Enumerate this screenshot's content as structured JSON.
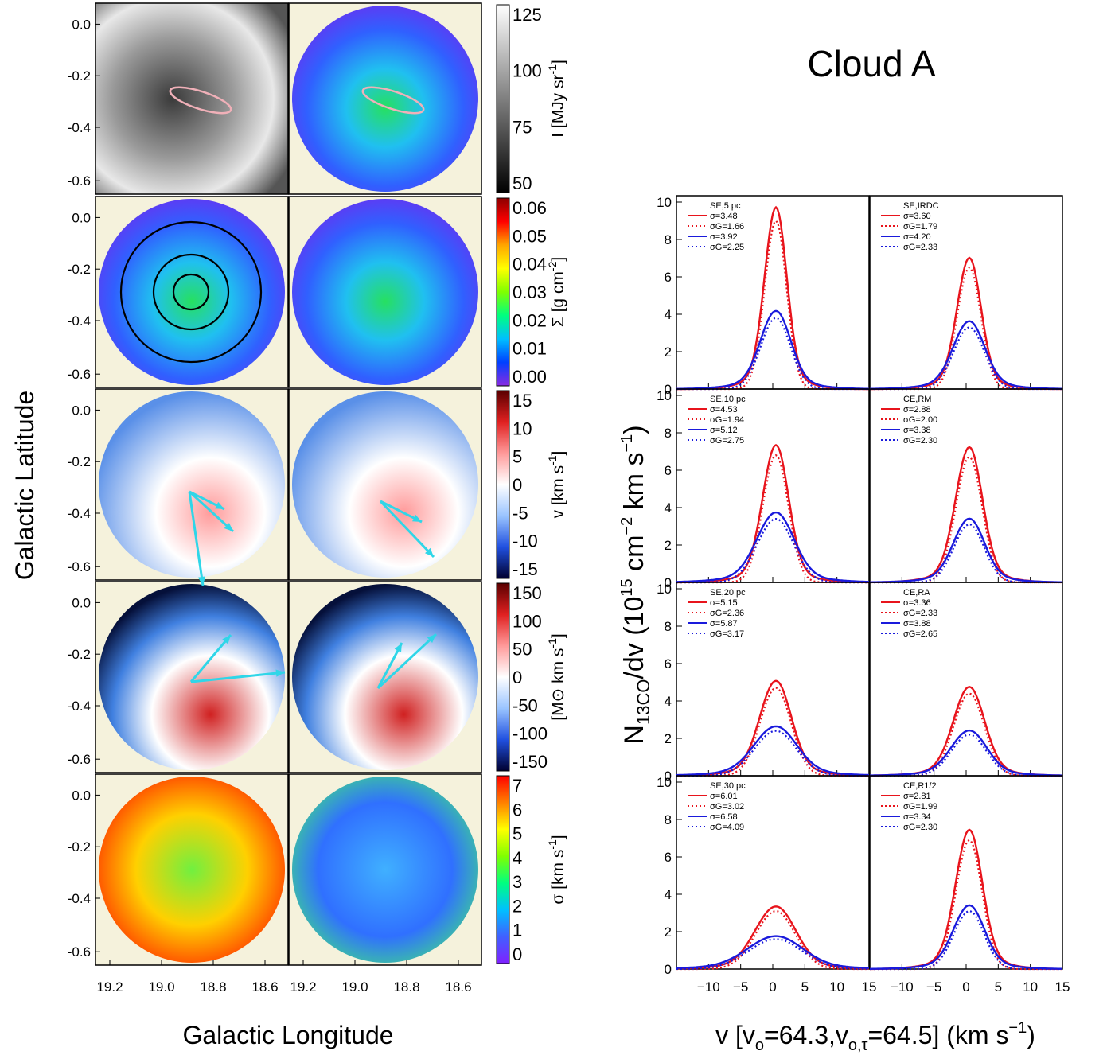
{
  "figure": {
    "title": "Cloud A",
    "left_ylabel": "Galactic Latitude",
    "left_xlabel": "Galactic Longitude",
    "right_ylabel_main": "N",
    "right_ylabel_sub": "13CO",
    "right_ylabel_rest": "/dv (10",
    "right_ylabel_exp": "15",
    "right_ylabel_tail": " cm",
    "right_ylabel_exp2": "−2",
    "right_ylabel_tail2": " km s",
    "right_ylabel_exp3": "−1",
    "right_ylabel_end": ")",
    "right_xlabel": "v [v",
    "right_xlabel_sub1": "o",
    "right_xlabel_mid": "=64.3,v",
    "right_xlabel_sub2": "o,τ",
    "right_xlabel_mid2": "=64.5] (km s",
    "right_xlabel_exp": "−1",
    "right_xlabel_end": ")"
  },
  "maps": {
    "lat_ticks": [
      "0.0",
      "-0.2",
      "-0.4",
      "-0.6"
    ],
    "lon_ticks_left": [
      "19.2",
      "19.0",
      "18.8",
      "18.6"
    ],
    "lon_ticks_right": [
      "19.2",
      "19.0",
      "18.8",
      "18.6"
    ],
    "colorbars": [
      {
        "label": "I [MJy sr",
        "label_exp": "-1",
        "label_end": "]",
        "ticks": [
          "125",
          "100",
          "75",
          "50"
        ],
        "colors": [
          "#ffffff",
          "#000000"
        ]
      },
      {
        "label": "Σ [g cm",
        "label_exp": "-2",
        "label_end": "]",
        "ticks": [
          "0.06",
          "0.05",
          "0.04",
          "0.03",
          "0.02",
          "0.01",
          "0.00"
        ],
        "colors": [
          "#8b0000",
          "#ff0000",
          "#ffa500",
          "#ffff00",
          "#7fff00",
          "#00ff7f",
          "#00bfff",
          "#0040ff",
          "#8a2be2"
        ]
      },
      {
        "label": "v [km s",
        "label_exp": "-1",
        "label_end": "]",
        "ticks": [
          "15",
          "10",
          "5",
          "0",
          "-5",
          "-10",
          "-15"
        ],
        "colors": [
          "#5a0000",
          "#e02020",
          "#ff9a9a",
          "#ffffff",
          "#9ac4ff",
          "#2050e0",
          "#000030"
        ]
      },
      {
        "label": "[M",
        "label_sym": "⊙",
        "label_mid": " km s",
        "label_exp": "-1",
        "label_end": "]",
        "ticks": [
          "150",
          "100",
          "50",
          "0",
          "-50",
          "-100",
          "-150"
        ],
        "colors": [
          "#5a0000",
          "#e02020",
          "#ff9a9a",
          "#ffffff",
          "#9ac4ff",
          "#2050e0",
          "#000030"
        ]
      },
      {
        "label": "σ [km s",
        "label_exp": "-1",
        "label_end": "]",
        "ticks": [
          "7",
          "6",
          "5",
          "4",
          "3",
          "2",
          "1",
          "0"
        ],
        "colors": [
          "#ff0000",
          "#ff8000",
          "#ffff00",
          "#80ff00",
          "#00ff80",
          "#00c0ff",
          "#4060ff",
          "#8020ff"
        ]
      }
    ]
  },
  "colors": {
    "red": "#e8141c",
    "blue": "#1a1adc",
    "cyan": "#2fd6e8",
    "map_bg": "#f5f2dc",
    "ellipse": "#f0b0b8"
  },
  "chart_data": {
    "type": "line",
    "xlim": [
      -15,
      15
    ],
    "ylim": [
      0,
      10
    ],
    "x_ticks": [
      "−10",
      "−5",
      "0",
      "5",
      "10",
      "15"
    ],
    "y_ticks": [
      "0",
      "2",
      "4",
      "6",
      "8",
      "10"
    ],
    "panels": [
      {
        "title": "SE,5 pc",
        "legend": [
          {
            "label": "σ=3.48",
            "style": "solid",
            "color": "red"
          },
          {
            "label": "σG=1.66",
            "style": "dotted",
            "color": "red"
          },
          {
            "label": "σ=3.92",
            "style": "solid",
            "color": "blue"
          },
          {
            "label": "σG=2.25",
            "style": "dotted",
            "color": "blue"
          }
        ],
        "red_peak": 9.0,
        "red_sigma": 1.66,
        "blue_peak": 3.8,
        "blue_sigma": 2.25
      },
      {
        "title": "SE,IRDC",
        "legend": [
          {
            "label": "σ=3.60",
            "style": "solid",
            "color": "red"
          },
          {
            "label": "σG=1.79",
            "style": "dotted",
            "color": "red"
          },
          {
            "label": "σ=4.20",
            "style": "solid",
            "color": "blue"
          },
          {
            "label": "σG=2.33",
            "style": "dotted",
            "color": "blue"
          }
        ],
        "red_peak": 6.5,
        "red_sigma": 1.79,
        "blue_peak": 3.3,
        "blue_sigma": 2.33
      },
      {
        "title": "SE,10 pc",
        "legend": [
          {
            "label": "σ=4.53",
            "style": "solid",
            "color": "red"
          },
          {
            "label": "σG=1.94",
            "style": "dotted",
            "color": "red"
          },
          {
            "label": "σ=5.12",
            "style": "solid",
            "color": "blue"
          },
          {
            "label": "σG=2.75",
            "style": "dotted",
            "color": "blue"
          }
        ],
        "red_peak": 6.8,
        "red_sigma": 1.94,
        "blue_peak": 3.4,
        "blue_sigma": 2.75
      },
      {
        "title": "CE,RM",
        "legend": [
          {
            "label": "σ=2.88",
            "style": "solid",
            "color": "red"
          },
          {
            "label": "σG=2.00",
            "style": "dotted",
            "color": "red"
          },
          {
            "label": "σ=3.38",
            "style": "solid",
            "color": "blue"
          },
          {
            "label": "σG=2.30",
            "style": "dotted",
            "color": "blue"
          }
        ],
        "red_peak": 6.7,
        "red_sigma": 2.0,
        "blue_peak": 3.1,
        "blue_sigma": 2.3
      },
      {
        "title": "SE,20 pc",
        "legend": [
          {
            "label": "σ=5.15",
            "style": "solid",
            "color": "red"
          },
          {
            "label": "σG=2.36",
            "style": "dotted",
            "color": "red"
          },
          {
            "label": "σ=5.87",
            "style": "solid",
            "color": "blue"
          },
          {
            "label": "σG=3.17",
            "style": "dotted",
            "color": "blue"
          }
        ],
        "red_peak": 4.7,
        "red_sigma": 2.36,
        "blue_peak": 2.4,
        "blue_sigma": 3.17
      },
      {
        "title": "CE,RA",
        "legend": [
          {
            "label": "σ=3.36",
            "style": "solid",
            "color": "red"
          },
          {
            "label": "σG=2.33",
            "style": "dotted",
            "color": "red"
          },
          {
            "label": "σ=3.88",
            "style": "solid",
            "color": "blue"
          },
          {
            "label": "σG=2.65",
            "style": "dotted",
            "color": "blue"
          }
        ],
        "red_peak": 4.4,
        "red_sigma": 2.33,
        "blue_peak": 2.2,
        "blue_sigma": 2.65
      },
      {
        "title": "SE,30 pc",
        "legend": [
          {
            "label": "σ=6.01",
            "style": "solid",
            "color": "red"
          },
          {
            "label": "σG=3.02",
            "style": "dotted",
            "color": "red"
          },
          {
            "label": "σ=6.58",
            "style": "solid",
            "color": "blue"
          },
          {
            "label": "σG=4.09",
            "style": "dotted",
            "color": "blue"
          }
        ],
        "red_peak": 3.1,
        "red_sigma": 3.02,
        "blue_peak": 1.6,
        "blue_sigma": 4.09
      },
      {
        "title": "CE,R1/2",
        "legend": [
          {
            "label": "σ=2.81",
            "style": "solid",
            "color": "red"
          },
          {
            "label": "σG=1.99",
            "style": "dotted",
            "color": "red"
          },
          {
            "label": "σ=3.34",
            "style": "solid",
            "color": "blue"
          },
          {
            "label": "σG=2.30",
            "style": "dotted",
            "color": "blue"
          }
        ],
        "red_peak": 6.9,
        "red_sigma": 1.99,
        "blue_peak": 3.1,
        "blue_sigma": 2.3
      }
    ]
  }
}
